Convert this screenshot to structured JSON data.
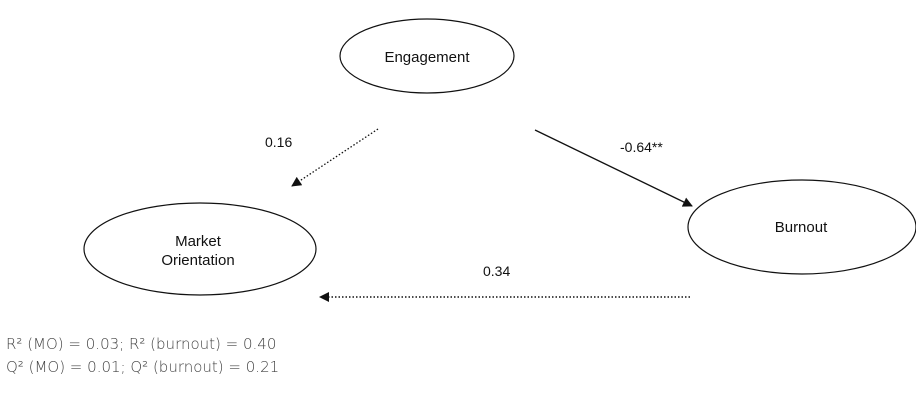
{
  "nodes": {
    "engagement": {
      "label": "Engagement"
    },
    "market_orientation": {
      "label_line1": "Market",
      "label_line2": "Orientation"
    },
    "burnout": {
      "label": "Burnout"
    }
  },
  "paths": {
    "engagement_to_mo": {
      "coefficient": "0.16",
      "line_style": "dotted",
      "significant": false
    },
    "engagement_to_burnout": {
      "coefficient": "-0.64**",
      "line_style": "solid",
      "significant": true
    },
    "burnout_to_mo": {
      "coefficient": "0.34",
      "line_style": "dotted",
      "significant": false
    }
  },
  "stats": {
    "r2_line": "R² (MO) = 0.03; R² (burnout) = 0.40",
    "q2_line": "Q² (MO) = 0.01; Q² (burnout) = 0.21"
  }
}
